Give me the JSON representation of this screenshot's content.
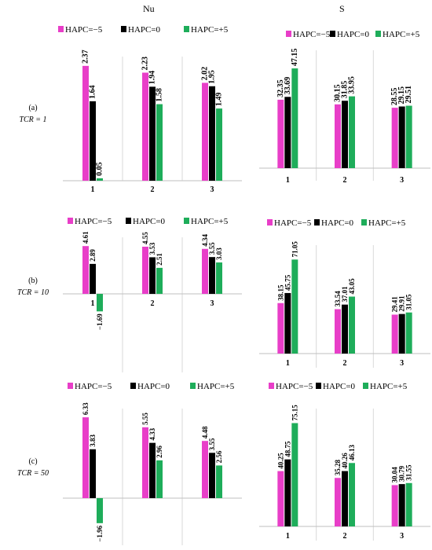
{
  "headers": {
    "left": "Nu",
    "right": "S"
  },
  "row_labels": [
    {
      "letter": "(a)",
      "tcr": "TCR = 1"
    },
    {
      "letter": "(b)",
      "tcr": "TCR = 10"
    },
    {
      "letter": "(c)",
      "tcr": "TCR = 50"
    }
  ],
  "colors": {
    "pink": "#E83EC8",
    "black": "#000000",
    "green": "#1EAD5A"
  },
  "chart_data": [
    {
      "id": "nu-a",
      "type": "bar",
      "categories": [
        "1",
        "2",
        "3"
      ],
      "series": [
        {
          "name": "HAPC=−5",
          "values": [
            2.37,
            2.23,
            2.02
          ]
        },
        {
          "name": "HAPC=0",
          "values": [
            1.64,
            1.94,
            1.95
          ]
        },
        {
          "name": "HAPC=+5",
          "values": [
            0.05,
            1.58,
            1.49
          ]
        }
      ],
      "labels": [
        [
          "2.37",
          "2.23",
          "2.02"
        ],
        [
          "1.64",
          "1.94",
          "1.95"
        ],
        [
          "0.05",
          "1.58",
          "1.49"
        ]
      ],
      "ylim": [
        0,
        2.4
      ],
      "title": "",
      "xlabel": "",
      "ylabel": ""
    },
    {
      "id": "s-a",
      "type": "bar",
      "categories": [
        "1",
        "2",
        "3"
      ],
      "series": [
        {
          "name": "HAPC=−5",
          "values": [
            32.35,
            30.15,
            28.55
          ]
        },
        {
          "name": "HAPC=0",
          "values": [
            33.69,
            31.85,
            29.15
          ]
        },
        {
          "name": "HAPC=+5",
          "values": [
            47.15,
            33.95,
            29.51
          ]
        }
      ],
      "labels": [
        [
          "32.35",
          "30.15",
          "28.55"
        ],
        [
          "33.69",
          "31.85",
          "29.15"
        ],
        [
          "47.15",
          "33.95",
          "29.51"
        ]
      ],
      "ylim": [
        0,
        52
      ],
      "title": "",
      "xlabel": "",
      "ylabel": ""
    },
    {
      "id": "nu-b",
      "type": "bar",
      "categories": [
        "1",
        "2",
        "3"
      ],
      "series": [
        {
          "name": "HAPC=−5",
          "values": [
            4.61,
            4.55,
            4.34
          ]
        },
        {
          "name": "HAPC=0",
          "values": [
            2.89,
            3.53,
            3.55
          ]
        },
        {
          "name": "HAPC=+5",
          "values": [
            -1.69,
            2.51,
            3.03
          ]
        }
      ],
      "labels": [
        [
          "4.61",
          "4.55",
          "4.34"
        ],
        [
          "2.89",
          "3.53",
          "3.55"
        ],
        [
          "−1.69",
          "2.51",
          "3.03"
        ]
      ],
      "ylim": [
        -1.9,
        4.7
      ],
      "title": "",
      "xlabel": "",
      "ylabel": ""
    },
    {
      "id": "s-b",
      "type": "bar",
      "categories": [
        "1",
        "2",
        "3"
      ],
      "series": [
        {
          "name": "HAPC=−5",
          "values": [
            38.15,
            33.54,
            29.41
          ]
        },
        {
          "name": "HAPC=0",
          "values": [
            45.75,
            37.01,
            29.91
          ]
        },
        {
          "name": "HAPC=+5",
          "values": [
            71.05,
            43.05,
            31.05
          ]
        }
      ],
      "labels": [
        [
          "38.15",
          "33.54",
          "29.41"
        ],
        [
          "45.75",
          "37.01",
          "29.91"
        ],
        [
          "71.05",
          "43.05",
          "31.05"
        ]
      ],
      "ylim": [
        0,
        76
      ],
      "title": "",
      "xlabel": "",
      "ylabel": ""
    },
    {
      "id": "nu-c",
      "type": "bar",
      "categories": [
        "1",
        "2",
        "3"
      ],
      "series": [
        {
          "name": "HAPC=−5",
          "values": [
            6.33,
            5.55,
            4.48
          ]
        },
        {
          "name": "HAPC=0",
          "values": [
            3.83,
            4.33,
            3.55
          ]
        },
        {
          "name": "HAPC=+5",
          "values": [
            -1.96,
            2.96,
            2.56
          ]
        }
      ],
      "labels": [
        [
          "6.33",
          "5.55",
          "4.48"
        ],
        [
          "3.83",
          "4.33",
          "3.55"
        ],
        [
          "−1.96",
          "2.96",
          "2.56"
        ]
      ],
      "ylim": [
        -2.2,
        6.4
      ],
      "title": "",
      "xlabel": "",
      "ylabel": ""
    },
    {
      "id": "s-c",
      "type": "bar",
      "categories": [
        "1",
        "2",
        "3"
      ],
      "series": [
        {
          "name": "HAPC=−5",
          "values": [
            40.25,
            35.28,
            30.04
          ]
        },
        {
          "name": "HAPC=0",
          "values": [
            48.75,
            40.26,
            30.79
          ]
        },
        {
          "name": "HAPC=+5",
          "values": [
            75.15,
            46.13,
            31.55
          ]
        }
      ],
      "labels": [
        [
          "40.25",
          "35.28",
          "30.04"
        ],
        [
          "48.75",
          "40.26",
          "30.79"
        ],
        [
          "75.15",
          "46.13",
          "31.55"
        ]
      ],
      "ylim": [
        0,
        80
      ],
      "title": "",
      "xlabel": "",
      "ylabel": ""
    }
  ]
}
